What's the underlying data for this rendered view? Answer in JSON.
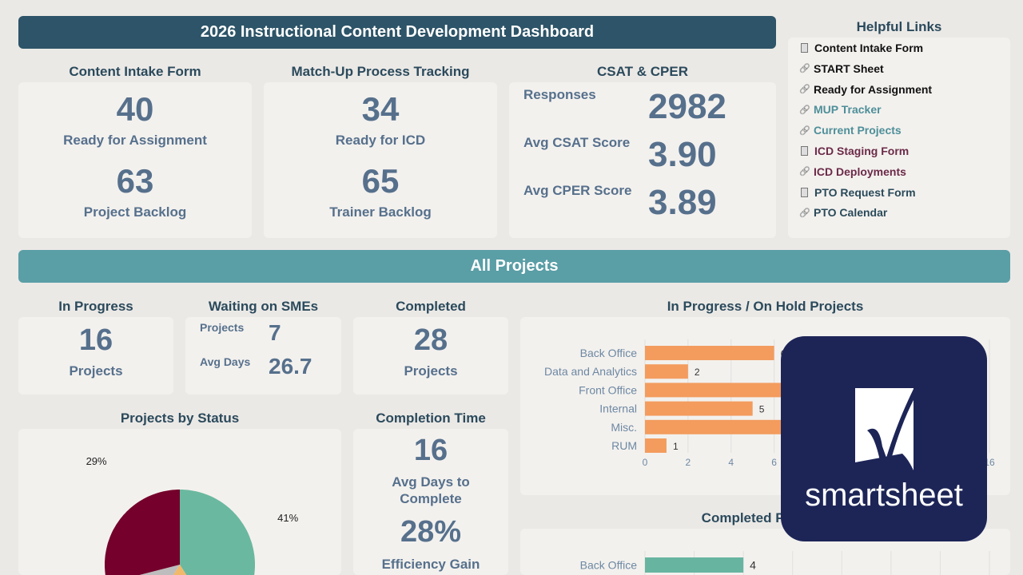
{
  "header": {
    "title": "2026 Instructional Content Development Dashboard"
  },
  "intake": {
    "title": "Content Intake Form",
    "v1": "40",
    "l1": "Ready for Assignment",
    "v2": "63",
    "l2": "Project Backlog"
  },
  "matchup": {
    "title": "Match-Up Process Tracking",
    "v1": "34",
    "l1": "Ready for ICD",
    "v2": "65",
    "l2": "Trainer Backlog"
  },
  "csat": {
    "title": "CSAT & CPER",
    "rows": [
      {
        "label": "Responses",
        "value": "2982"
      },
      {
        "label": "Avg CSAT Score",
        "value": "3.90"
      },
      {
        "label": "Avg CPER Score",
        "value": "3.89"
      }
    ]
  },
  "links": {
    "title": "Helpful Links",
    "items": [
      {
        "label": "Content Intake Form",
        "icon": "form-icon",
        "color": "#111111"
      },
      {
        "label": "START Sheet",
        "icon": "link-icon",
        "color": "#111111"
      },
      {
        "label": "Ready for Assignment",
        "icon": "link-icon",
        "color": "#111111"
      },
      {
        "label": "MUP Tracker",
        "icon": "link-icon",
        "color": "#4e8f99"
      },
      {
        "label": "Current Projects",
        "icon": "link-icon",
        "color": "#4e8f99"
      },
      {
        "label": "ICD Staging Form",
        "icon": "form-icon",
        "color": "#6b2a48"
      },
      {
        "label": "ICD Deployments",
        "icon": "link-icon",
        "color": "#6b2a48"
      },
      {
        "label": "PTO Request Form",
        "icon": "form-icon",
        "color": "#2a4a5a"
      },
      {
        "label": "PTO Calendar",
        "icon": "link-icon",
        "color": "#2a4a5a"
      }
    ]
  },
  "all_projects": {
    "title": "All Projects"
  },
  "in_progress": {
    "title": "In Progress",
    "value": "16",
    "label": "Projects"
  },
  "waiting": {
    "title": "Waiting on SMEs",
    "projects_label": "Projects",
    "projects_value": "7",
    "days_label": "Avg Days",
    "days_value": "26.7"
  },
  "completed": {
    "title": "Completed",
    "value": "28",
    "label": "Projects"
  },
  "by_status": {
    "title": "Projects by Status"
  },
  "completion": {
    "title": "Completion Time",
    "v1": "16",
    "l1": "Avg Days to Complete",
    "v2": "28%",
    "l2": "Efficiency Gain"
  },
  "logo": {
    "text": "smartsheet",
    "bg": "#1d2557"
  },
  "chart_data": [
    {
      "type": "bar",
      "orientation": "horizontal",
      "title": "In Progress / On Hold Projects",
      "categories": [
        "Back Office",
        "Data and Analytics",
        "Front Office",
        "Internal",
        "Misc.",
        "RUM"
      ],
      "values": [
        6,
        2,
        9,
        5,
        7,
        1
      ],
      "xlim": [
        0,
        16
      ],
      "xticks": [
        0,
        2,
        4,
        6,
        8,
        10,
        12,
        14,
        16
      ],
      "color": "#f39c5e",
      "grid": true
    },
    {
      "type": "bar",
      "orientation": "horizontal",
      "title": "Completed Projects",
      "categories": [
        "Back Office"
      ],
      "values": [
        4
      ],
      "xlim": [
        0,
        14
      ],
      "color": "#67b5a0",
      "grid": true
    },
    {
      "type": "pie",
      "title": "Projects by Status",
      "slices": [
        {
          "value": 41,
          "label": "41%",
          "color": "#6ab89f"
        },
        {
          "value": 18,
          "label": "",
          "color": "#f2b96b"
        },
        {
          "value": 12,
          "label": "",
          "color": "#bdbdbd"
        },
        {
          "value": 29,
          "label": "29%",
          "color": "#74002b"
        }
      ]
    }
  ]
}
